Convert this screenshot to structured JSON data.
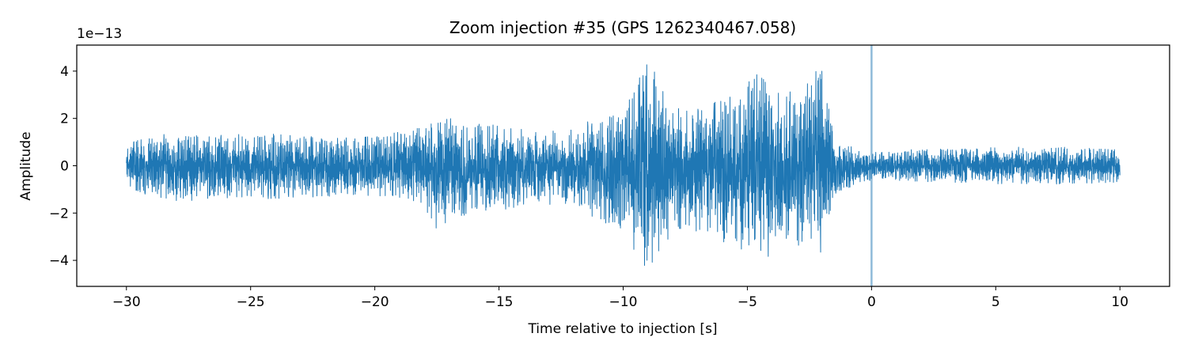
{
  "chart_data": {
    "type": "line",
    "title": "Zoom injection #35 (GPS 1262340467.058)",
    "xlabel": "Time relative to injection [s]",
    "ylabel": "Amplitude",
    "y_offset_text": "1e−13",
    "xlim": [
      -32,
      12
    ],
    "ylim": [
      -5.1,
      5.1
    ],
    "x_ticks": [
      -30,
      -25,
      -20,
      -15,
      -10,
      -5,
      0,
      5,
      10
    ],
    "x_tick_labels": [
      "−30",
      "−25",
      "−20",
      "−15",
      "−10",
      "−5",
      "0",
      "5",
      "10"
    ],
    "y_ticks": [
      -4,
      -2,
      0,
      2,
      4
    ],
    "y_tick_labels": [
      "−4",
      "−2",
      "0",
      "2",
      "4"
    ],
    "grid": false,
    "series": [
      {
        "color": "#1f77b4",
        "x_range": [
          -30,
          10
        ],
        "envelope": {
          "t": [
            -30,
            -28,
            -26,
            -24,
            -22,
            -20,
            -18.5,
            -17.5,
            -16.5,
            -15,
            -13.5,
            -12,
            -10,
            -9,
            -8.5,
            -7.5,
            -6.5,
            -5.5,
            -4.5,
            -4,
            -3.5,
            -2.5,
            -2,
            -1.5,
            -0.5,
            0,
            2,
            5,
            8,
            10
          ],
          "upper": [
            1.1,
            1.4,
            1.3,
            1.4,
            1.2,
            1.3,
            1.6,
            2.2,
            1.9,
            1.8,
            1.5,
            1.6,
            2.5,
            4.6,
            3.5,
            2.3,
            2.9,
            3.2,
            4.4,
            3.7,
            3.0,
            3.9,
            4.2,
            1.2,
            0.7,
            0.6,
            0.7,
            0.8,
            0.8,
            0.7
          ],
          "lower": [
            -1.2,
            -1.5,
            -1.4,
            -1.4,
            -1.3,
            -1.3,
            -1.6,
            -2.7,
            -2.2,
            -1.9,
            -1.6,
            -1.7,
            -2.9,
            -4.6,
            -3.7,
            -2.6,
            -3.0,
            -3.4,
            -4.1,
            -4.0,
            -3.2,
            -3.6,
            -3.9,
            -1.2,
            -0.8,
            -0.6,
            -0.7,
            -0.8,
            -0.8,
            -0.7
          ]
        }
      }
    ],
    "vlines": [
      {
        "x": 0,
        "color": "#1f77b4",
        "alpha": 0.5
      }
    ]
  }
}
